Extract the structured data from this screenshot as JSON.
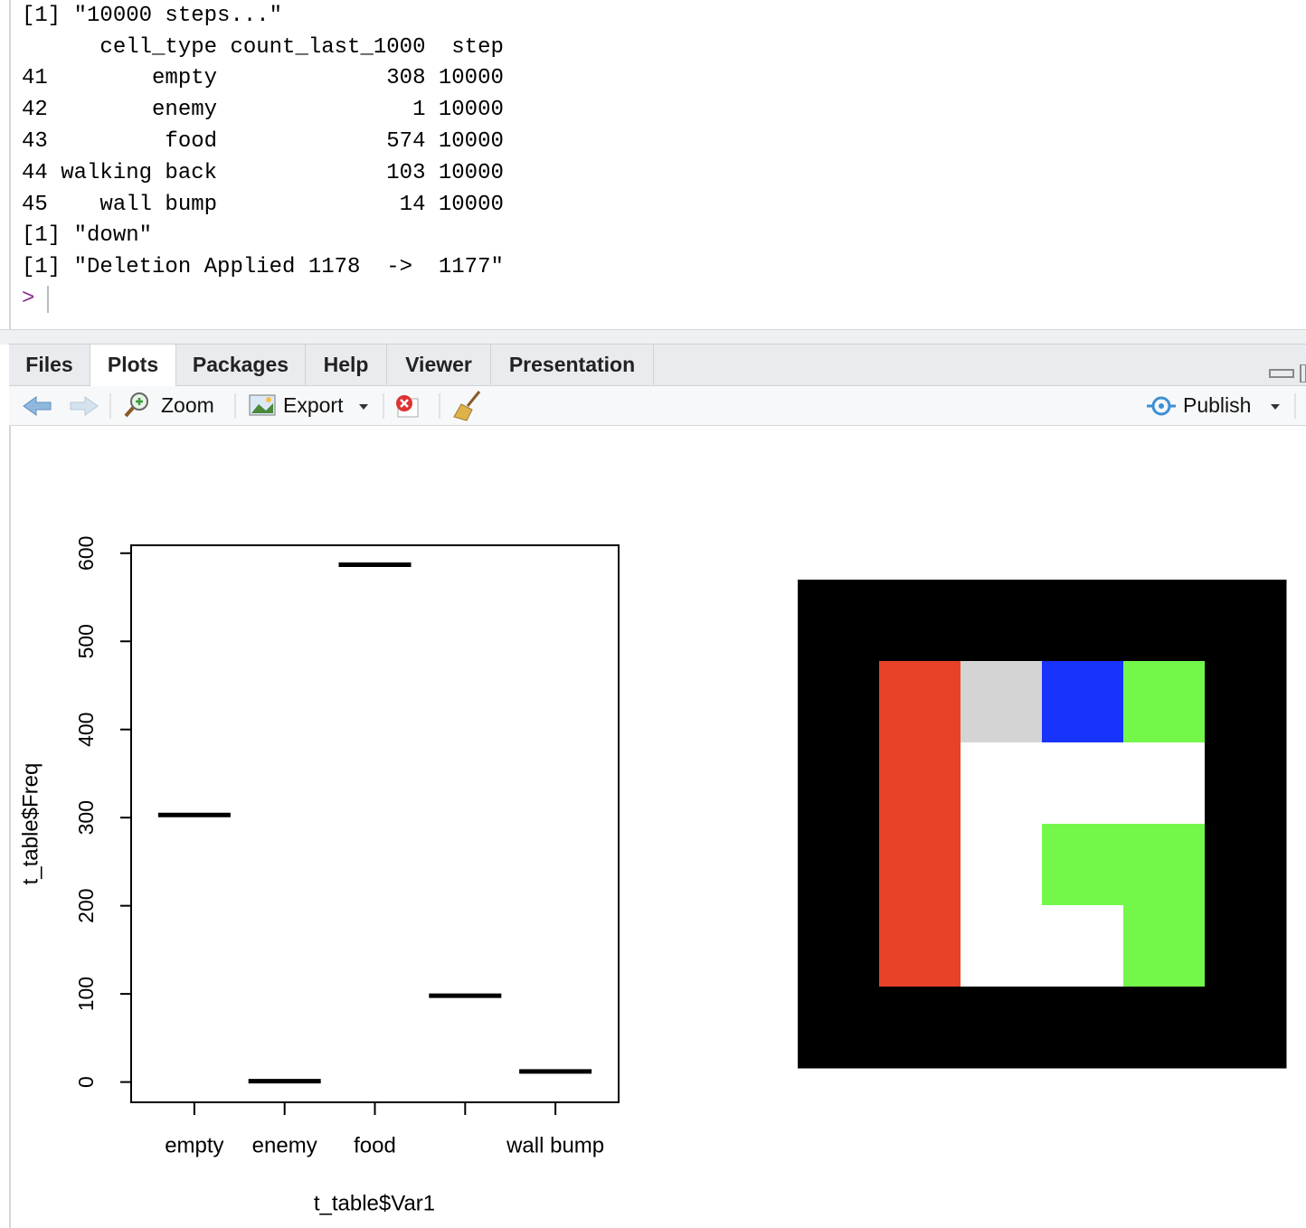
{
  "console": {
    "lines": [
      "[1] \"10000 steps...\"",
      "      cell_type count_last_1000  step",
      "41        empty             308 10000",
      "42        enemy               1 10000",
      "43         food             574 10000",
      "44 walking back             103 10000",
      "45    wall bump              14 10000",
      "[1] \"down\"",
      "[1] \"Deletion Applied 1178  ->  1177\""
    ],
    "prompt": ">"
  },
  "tabs": [
    "Files",
    "Plots",
    "Packages",
    "Help",
    "Viewer",
    "Presentation"
  ],
  "toolbar": {
    "zoom": "Zoom",
    "export": "Export",
    "publish": "Publish"
  },
  "chart_data": {
    "type": "boxplot",
    "x_label": "t_table$Var1",
    "y_label": "t_table$Freq",
    "categories": [
      "empty",
      "enemy",
      "food",
      null,
      "wall bump"
    ],
    "values": [
      303,
      1,
      587,
      98,
      12
    ],
    "color": "#000000",
    "ylim": [
      -23,
      609
    ],
    "yticks": [
      0,
      100,
      200,
      300,
      400,
      500,
      600
    ]
  }
}
